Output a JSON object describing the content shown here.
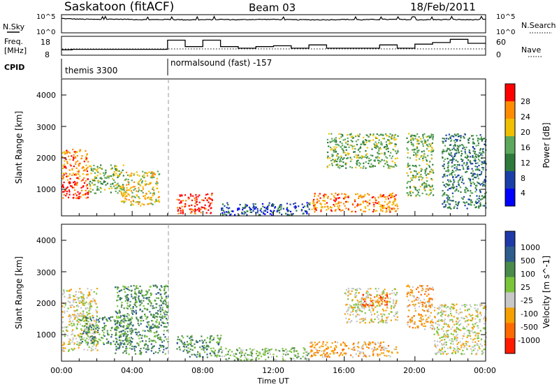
{
  "header": {
    "station": "Saskatoon (fitACF)",
    "beam": "Beam 03",
    "date": "18/Feb/2011"
  },
  "noise_panel": {
    "left_label": "N.Sky",
    "right_label": "N.Search",
    "left_ticks": [
      "10^5",
      "10^0"
    ],
    "right_ticks": [
      "10^5",
      "10^0"
    ]
  },
  "freq_panel": {
    "left_label_line1": "Freq.",
    "left_label_line2": "[MHz]",
    "right_label": "Nave",
    "left_ticks": [
      "18",
      "8"
    ],
    "right_ticks": [
      "60",
      "0"
    ]
  },
  "cpid_panel": {
    "label": "CPID",
    "programs": [
      {
        "name": "themis 3300",
        "start_h": 0.0,
        "end_h": 6.05
      },
      {
        "name": "normalsound (fast) -157",
        "start_h": 6.05,
        "end_h": 24.0
      }
    ]
  },
  "power_panel": {
    "ylabel": "Slant Range [km]",
    "yticks": [
      "1000",
      "2000",
      "3000",
      "4000"
    ],
    "colorbar_label": "Power [dB]",
    "colorbar_ticks": [
      "4",
      "8",
      "12",
      "16",
      "20",
      "24",
      "28"
    ],
    "colors": [
      "#0000ff",
      "#1a3fa8",
      "#2e7a3c",
      "#5ca85c",
      "#f0c000",
      "#ff8c00",
      "#ff0000"
    ]
  },
  "velocity_panel": {
    "ylabel": "Slant Range [km]",
    "yticks": [
      "1000",
      "2000",
      "3000",
      "4000"
    ],
    "colorbar_label": "Velocity [m s^-1]",
    "colorbar_ticks": [
      "1000",
      "500",
      "100",
      "25",
      "-25",
      "-100",
      "-500",
      "-1000"
    ],
    "colors": [
      "#1f3aa8",
      "#2e5c8c",
      "#4a8a4a",
      "#7ac53a",
      "#c8c8c8",
      "#f5a000",
      "#ff6a00",
      "#ff1a00"
    ]
  },
  "x_axis": {
    "label": "Time UT",
    "ticks": [
      "00:00",
      "04:00",
      "08:00",
      "12:00",
      "16:00",
      "20:00",
      "00:00"
    ]
  },
  "chart_data": [
    {
      "type": "line",
      "name": "N.Sky noise",
      "x_hours": [
        0,
        1,
        2,
        3,
        4,
        5,
        6,
        7,
        8,
        9,
        10,
        11,
        12,
        13,
        14,
        15,
        16,
        17,
        18,
        19,
        20,
        21,
        22,
        23,
        24
      ],
      "values_log10": [
        4.2,
        4.0,
        3.9,
        4.0,
        3.9,
        3.8,
        3.9,
        3.8,
        3.8,
        3.9,
        3.8,
        3.9,
        3.9,
        3.8,
        3.8,
        3.8,
        3.9,
        3.8,
        3.9,
        3.9,
        3.8,
        3.8,
        3.9,
        3.8,
        3.9
      ],
      "ylim": [
        0,
        5
      ],
      "yscale": "log"
    },
    {
      "type": "line",
      "name": "Frequency",
      "x_hours": [
        0,
        0.6,
        0.6,
        6.0,
        6.0,
        7.0,
        7.0,
        8.0,
        8.0,
        9.0,
        9.0,
        10.0,
        10.0,
        11.0,
        11.0,
        12.0,
        12.0,
        13.0,
        13.0,
        14.0,
        14.0,
        15.0,
        15.0,
        18.0,
        18.0,
        19.0,
        19.0,
        20.0,
        20.0,
        21.0,
        21.0,
        22.0,
        22.0,
        23.0,
        23.0,
        24.0
      ],
      "values": [
        10.5,
        10.5,
        10.8,
        10.8,
        16.5,
        16.5,
        12.5,
        12.5,
        16.5,
        16.5,
        12.5,
        12.5,
        11.5,
        11.5,
        12.5,
        12.5,
        13.0,
        13.0,
        11.5,
        11.5,
        13.5,
        13.5,
        11.5,
        11.5,
        13.5,
        13.5,
        11.5,
        11.5,
        14.0,
        14.0,
        15.0,
        15.0,
        17.0,
        17.0,
        14.5,
        14.5
      ],
      "ylim": [
        8,
        18
      ]
    },
    {
      "type": "heatmap",
      "name": "Power",
      "x_range_hours": [
        0,
        24
      ],
      "y_range_km": [
        180,
        4500
      ],
      "units": "dB",
      "color_levels": [
        4,
        8,
        12,
        16,
        20,
        24,
        28
      ],
      "regions": [
        {
          "t": [
            0.0,
            1.5
          ],
          "r": [
            700,
            1300
          ],
          "level": 28
        },
        {
          "t": [
            0.0,
            1.5
          ],
          "r": [
            1300,
            2300
          ],
          "level": 24
        },
        {
          "t": [
            1.5,
            3.5
          ],
          "r": [
            900,
            1800
          ],
          "level": 16
        },
        {
          "t": [
            3.3,
            5.5
          ],
          "r": [
            500,
            1600
          ],
          "level": 20
        },
        {
          "t": [
            6.5,
            8.5
          ],
          "r": [
            250,
            900
          ],
          "level": 28
        },
        {
          "t": [
            9.0,
            14.0
          ],
          "r": [
            200,
            600
          ],
          "level": 8
        },
        {
          "t": [
            14.0,
            19.0
          ],
          "r": [
            300,
            900
          ],
          "level": 24
        },
        {
          "t": [
            15.0,
            19.0
          ],
          "r": [
            1700,
            2800
          ],
          "level": 16
        },
        {
          "t": [
            19.5,
            21.0
          ],
          "r": [
            800,
            2800
          ],
          "level": 16
        },
        {
          "t": [
            21.5,
            24.0
          ],
          "r": [
            400,
            2800
          ],
          "level": 12
        }
      ]
    },
    {
      "type": "heatmap",
      "name": "Velocity",
      "x_range_hours": [
        0,
        24
      ],
      "y_range_km": [
        180,
        4500
      ],
      "units": "m s^-1",
      "color_levels": [
        1000,
        500,
        100,
        25,
        -25,
        -100,
        -500,
        -1000
      ],
      "regions": [
        {
          "t": [
            0.0,
            2.0
          ],
          "r": [
            500,
            2500
          ],
          "level": -25
        },
        {
          "t": [
            1.0,
            4.0
          ],
          "r": [
            700,
            1600
          ],
          "level": 100
        },
        {
          "t": [
            3.0,
            6.0
          ],
          "r": [
            400,
            2600
          ],
          "level": 100
        },
        {
          "t": [
            6.5,
            9.0
          ],
          "r": [
            300,
            1000
          ],
          "level": 100
        },
        {
          "t": [
            9.0,
            14.0
          ],
          "r": [
            200,
            600
          ],
          "level": 25
        },
        {
          "t": [
            14.0,
            19.0
          ],
          "r": [
            300,
            800
          ],
          "level": -100
        },
        {
          "t": [
            16.0,
            19.0
          ],
          "r": [
            1400,
            2500
          ],
          "level": -25
        },
        {
          "t": [
            17.0,
            18.5
          ],
          "r": [
            1900,
            2300
          ],
          "level": -500
        },
        {
          "t": [
            19.5,
            21.0
          ],
          "r": [
            1200,
            2600
          ],
          "level": -100
        },
        {
          "t": [
            21.0,
            24.0
          ],
          "r": [
            400,
            2000
          ],
          "level": -25
        }
      ]
    }
  ]
}
